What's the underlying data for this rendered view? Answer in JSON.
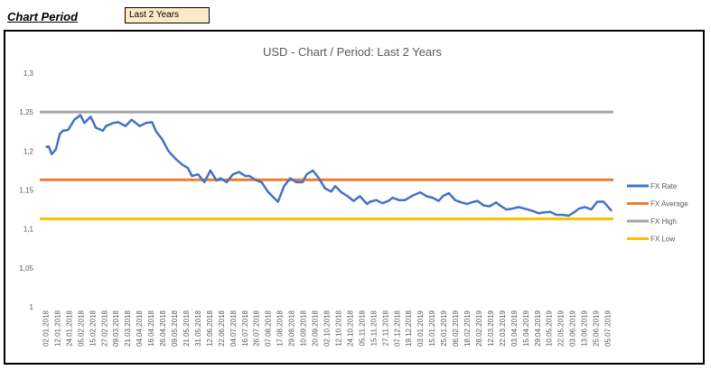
{
  "header": {
    "period_label": "Chart Period",
    "period_value": "Last 2 Years"
  },
  "chart_data": {
    "type": "line",
    "title": "USD - Chart / Period: Last 2 Years",
    "xlabel": "",
    "ylabel": "",
    "ylim": [
      1,
      1.3
    ],
    "y_ticks": [
      "1",
      "1,05",
      "1,1",
      "1,15",
      "1,2",
      "1,25",
      "1,3"
    ],
    "grid": false,
    "legend_position": "right",
    "x_tick_labels": [
      "02.01.2018",
      "12.01.2018",
      "24.01.2018",
      "05.02.2018",
      "15.02.2018",
      "27.02.2018",
      "09.03.2018",
      "21.03.2018",
      "04.04.2018",
      "16.04.2018",
      "26.04.2018",
      "09.05.2018",
      "21.05.2018",
      "31.05.2018",
      "12.06.2018",
      "22.06.2018",
      "04.07.2018",
      "16.07.2018",
      "26.07.2018",
      "07.08.2018",
      "17.08.2018",
      "29.08.2018",
      "10.09.2018",
      "20.09.2018",
      "02.10.2018",
      "12.10.2018",
      "24.10.2018",
      "05.11.2018",
      "15.11.2018",
      "27.11.2018",
      "07.12.2018",
      "19.12.2018",
      "03.01.2019",
      "15.01.2019",
      "25.01.2019",
      "06.02.2019",
      "18.02.2019",
      "28.02.2019",
      "12.03.2019",
      "22.03.2019",
      "03.04.2019",
      "15.04.2019",
      "29.04.2019",
      "10.05.2019",
      "22.05.2019",
      "03.06.2019",
      "13.06.2019",
      "25.06.2019",
      "05.07.2019"
    ],
    "series": [
      {
        "name": "FX Rate",
        "color": "#4472c4",
        "x": [
          "02.01.2018",
          "05.01.2018",
          "08.01.2018",
          "12.01.2018",
          "16.01.2018",
          "19.01.2018",
          "24.01.2018",
          "30.01.2018",
          "05.02.2018",
          "09.02.2018",
          "15.02.2018",
          "20.02.2018",
          "27.02.2018",
          "02.03.2018",
          "09.03.2018",
          "14.03.2018",
          "21.03.2018",
          "27.03.2018",
          "04.04.2018",
          "10.04.2018",
          "16.04.2018",
          "20.04.2018",
          "26.04.2018",
          "02.05.2018",
          "09.05.2018",
          "15.05.2018",
          "21.05.2018",
          "25.05.2018",
          "31.05.2018",
          "06.06.2018",
          "12.06.2018",
          "18.06.2018",
          "22.06.2018",
          "28.06.2018",
          "04.07.2018",
          "10.07.2018",
          "16.07.2018",
          "20.07.2018",
          "26.07.2018",
          "01.08.2018",
          "07.08.2018",
          "13.08.2018",
          "17.08.2018",
          "23.08.2018",
          "29.08.2018",
          "04.09.2018",
          "10.09.2018",
          "14.09.2018",
          "20.09.2018",
          "26.09.2018",
          "02.10.2018",
          "08.10.2018",
          "12.10.2018",
          "18.10.2018",
          "24.10.2018",
          "30.10.2018",
          "05.11.2018",
          "12.11.2018",
          "15.11.2018",
          "21.11.2018",
          "27.11.2018",
          "03.12.2018",
          "07.12.2018",
          "13.12.2018",
          "19.12.2018",
          "27.12.2018",
          "03.01.2019",
          "09.01.2019",
          "15.01.2019",
          "21.01.2019",
          "25.01.2019",
          "31.01.2019",
          "06.02.2019",
          "12.02.2019",
          "18.02.2019",
          "22.02.2019",
          "28.02.2019",
          "06.03.2019",
          "12.03.2019",
          "18.03.2019",
          "22.03.2019",
          "28.03.2019",
          "03.04.2019",
          "09.04.2019",
          "15.04.2019",
          "23.04.2019",
          "29.04.2019",
          "03.05.2019",
          "10.05.2019",
          "16.05.2019",
          "22.05.2019",
          "28.05.2019",
          "03.06.2019",
          "07.06.2019",
          "13.06.2019",
          "19.06.2019",
          "25.06.2019",
          "01.07.2019",
          "05.07.2019",
          "09.07.2019"
        ],
        "values": [
          1.205,
          1.206,
          1.196,
          1.202,
          1.222,
          1.226,
          1.227,
          1.24,
          1.246,
          1.236,
          1.244,
          1.23,
          1.226,
          1.232,
          1.236,
          1.237,
          1.232,
          1.24,
          1.232,
          1.236,
          1.237,
          1.225,
          1.215,
          1.2,
          1.19,
          1.183,
          1.178,
          1.168,
          1.17,
          1.16,
          1.175,
          1.162,
          1.165,
          1.16,
          1.17,
          1.173,
          1.168,
          1.168,
          1.163,
          1.16,
          1.148,
          1.14,
          1.135,
          1.155,
          1.165,
          1.16,
          1.16,
          1.17,
          1.175,
          1.165,
          1.152,
          1.148,
          1.155,
          1.147,
          1.142,
          1.136,
          1.142,
          1.132,
          1.135,
          1.137,
          1.133,
          1.136,
          1.14,
          1.137,
          1.137,
          1.143,
          1.147,
          1.142,
          1.14,
          1.136,
          1.142,
          1.146,
          1.137,
          1.134,
          1.132,
          1.134,
          1.136,
          1.13,
          1.129,
          1.134,
          1.13,
          1.125,
          1.126,
          1.128,
          1.126,
          1.123,
          1.12,
          1.121,
          1.122,
          1.118,
          1.118,
          1.117,
          1.122,
          1.126,
          1.128,
          1.125,
          1.135,
          1.135,
          1.129,
          1.123
        ]
      },
      {
        "name": "FX Average",
        "color": "#ed7d31",
        "value": 1.163
      },
      {
        "name": "FX High",
        "color": "#a5a5a5",
        "value": 1.25
      },
      {
        "name": "FX Low",
        "color": "#ffc000",
        "value": 1.113
      }
    ]
  }
}
